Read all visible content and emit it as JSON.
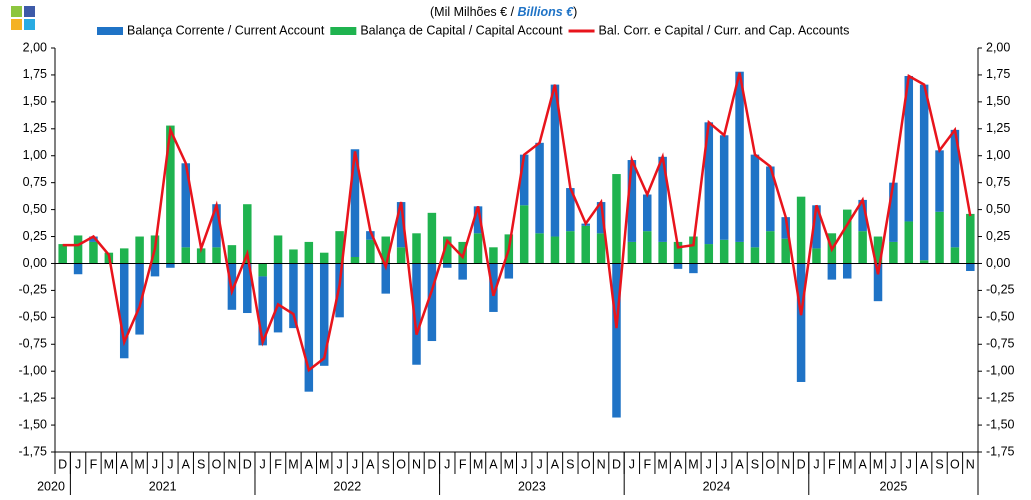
{
  "chart_data": {
    "type": "bar",
    "subtitle": "(Mil Milhões  € /",
    "subtitle_en": "Billions €",
    "subtitle_close": ")",
    "categories": [
      "D",
      "J",
      "F",
      "M",
      "A",
      "M",
      "J",
      "J",
      "A",
      "S",
      "O",
      "N",
      "D",
      "J",
      "F",
      "M",
      "A",
      "M",
      "J",
      "J",
      "A",
      "S",
      "O",
      "N",
      "D",
      "J",
      "F",
      "M",
      "A",
      "M",
      "J",
      "J",
      "A",
      "S",
      "O",
      "N",
      "D",
      "J",
      "F",
      "M",
      "A",
      "M",
      "J",
      "J",
      "A",
      "S",
      "O",
      "N",
      "D",
      "J",
      "F",
      "M",
      "A",
      "M",
      "J",
      "J",
      "A",
      "S",
      "O",
      "N"
    ],
    "years": [
      "2020",
      "2021",
      "2022",
      "2023",
      "2024",
      "2025"
    ],
    "series": [
      {
        "name": "Balança Corrente / Current Account",
        "color": "#1f73c6",
        "values": [
          0.0,
          -0.1,
          0.05,
          0.0,
          -0.88,
          -0.66,
          -0.12,
          -0.04,
          0.78,
          0.0,
          0.4,
          -0.43,
          -0.46,
          -0.64,
          -0.64,
          -0.6,
          -1.19,
          -0.95,
          -0.5,
          1.0,
          0.08,
          -0.28,
          0.42,
          -0.94,
          -0.72,
          -0.04,
          -0.15,
          0.25,
          -0.45,
          -0.14,
          0.47,
          0.84,
          1.41,
          0.4,
          0.02,
          0.29,
          -1.43,
          0.76,
          0.34,
          0.79,
          -0.05,
          -0.09,
          1.13,
          0.97,
          1.58,
          0.86,
          0.6,
          0.2,
          -1.1,
          0.4,
          -0.15,
          -0.14,
          0.29,
          -0.35,
          0.55,
          1.35,
          1.63,
          0.57,
          1.09,
          -0.07
        ]
      },
      {
        "name": "Balança de Capital / Capital Account",
        "color": "#1fb34f",
        "values": [
          0.18,
          0.26,
          0.2,
          0.1,
          0.14,
          0.25,
          0.26,
          1.28,
          0.15,
          0.14,
          0.15,
          0.17,
          0.55,
          -0.12,
          0.26,
          0.13,
          0.2,
          0.1,
          0.3,
          0.06,
          0.22,
          0.25,
          0.15,
          0.28,
          0.47,
          0.25,
          0.2,
          0.28,
          0.15,
          0.27,
          0.54,
          0.28,
          0.25,
          0.3,
          0.35,
          0.28,
          0.83,
          0.2,
          0.3,
          0.2,
          0.2,
          0.25,
          0.18,
          0.22,
          0.2,
          0.15,
          0.3,
          0.23,
          0.62,
          0.14,
          0.28,
          0.5,
          0.3,
          0.25,
          0.2,
          0.39,
          0.03,
          0.48,
          0.15,
          0.46
        ]
      },
      {
        "name": "Bal. Corr. e Capital / Curr. and Cap. Accounts",
        "color": "#e8141c",
        "line": true,
        "values": [
          0.17,
          0.17,
          0.25,
          0.08,
          -0.73,
          -0.4,
          0.14,
          1.24,
          0.93,
          0.14,
          0.54,
          -0.26,
          0.09,
          -0.73,
          -0.38,
          -0.47,
          -0.99,
          -0.88,
          -0.2,
          1.04,
          0.3,
          -0.03,
          0.57,
          -0.66,
          -0.25,
          0.21,
          0.06,
          0.53,
          -0.3,
          0.13,
          1.01,
          1.12,
          1.66,
          0.7,
          0.37,
          0.57,
          -0.6,
          0.96,
          0.64,
          0.99,
          0.15,
          0.17,
          1.31,
          1.19,
          1.77,
          1.01,
          0.9,
          0.43,
          -0.48,
          0.54,
          0.13,
          0.36,
          0.59,
          -0.1,
          0.75,
          1.74,
          1.66,
          1.05,
          1.24,
          0.44
        ]
      }
    ],
    "ylim": [
      -1.75,
      2.0
    ],
    "yticks": [
      {
        "value": -1.75,
        "label": "-1,75"
      },
      {
        "value": -1.5,
        "label": "-1,50"
      },
      {
        "value": -1.25,
        "label": "-1,25"
      },
      {
        "value": -1.0,
        "label": "-1,00"
      },
      {
        "value": -0.75,
        "label": "-0,75"
      },
      {
        "value": -0.5,
        "label": "-0,50"
      },
      {
        "value": -0.25,
        "label": "-0,25"
      },
      {
        "value": 0,
        "label": "0,00"
      },
      {
        "value": 0.25,
        "label": "0,25"
      },
      {
        "value": 0.5,
        "label": "0,50"
      },
      {
        "value": 0.75,
        "label": "0,75"
      },
      {
        "value": 1.0,
        "label": "1,00"
      },
      {
        "value": 1.25,
        "label": "1,25"
      },
      {
        "value": 1.5,
        "label": "1,50"
      },
      {
        "value": 1.75,
        "label": "1,75"
      },
      {
        "value": 2.0,
        "label": "2,00"
      }
    ]
  }
}
